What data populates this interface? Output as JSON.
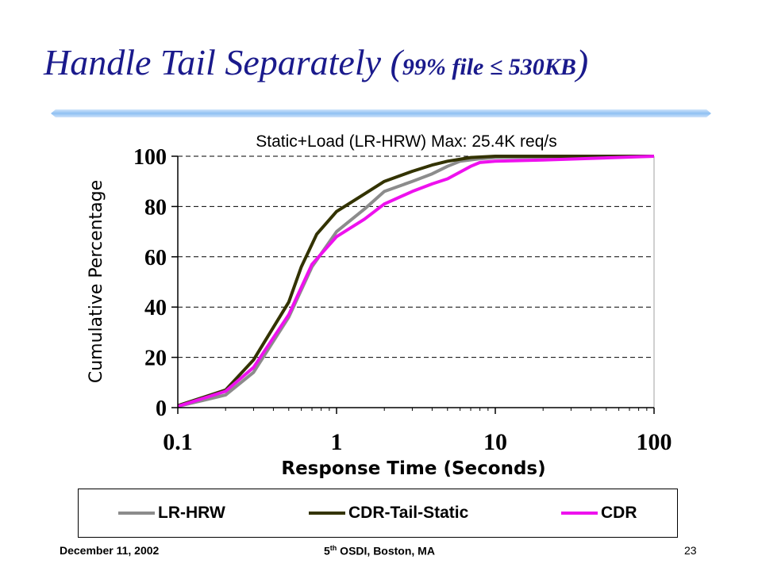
{
  "slide": {
    "title_main": "Handle Tail Separately (",
    "title_small": "99% file ≤ 530KB",
    "title_close": ")",
    "title_color": "#1a1a8c"
  },
  "footer": {
    "date": "December 11, 2002",
    "venue_prefix": "5",
    "venue_sup": "th",
    "venue_rest": " OSDI, Boston, MA",
    "page": "23"
  },
  "chart_data": {
    "type": "line",
    "title": "Static+Load (LR-HRW) Max: 25.4K req/s",
    "xlabel": "Response Time (Seconds)",
    "ylabel": "Cumulative Percentage",
    "xscale": "log",
    "xlim": [
      0.1,
      100
    ],
    "ylim": [
      0,
      100
    ],
    "xticks": [
      0.1,
      1,
      10,
      100
    ],
    "xtick_labels": [
      "0.1",
      "1",
      "10",
      "100"
    ],
    "yticks": [
      0,
      20,
      40,
      60,
      80,
      100
    ],
    "ytick_labels": [
      "0",
      "20",
      "40",
      "60",
      "80",
      "100"
    ],
    "grid": "horizontal dashed",
    "legend": "bottom",
    "series": [
      {
        "name": "LR-HRW",
        "color": "#8c8c8c",
        "points": [
          [
            0.1,
            0.5
          ],
          [
            0.2,
            5
          ],
          [
            0.3,
            14
          ],
          [
            0.5,
            36
          ],
          [
            0.7,
            56
          ],
          [
            1,
            70
          ],
          [
            1.5,
            79
          ],
          [
            2,
            86
          ],
          [
            3,
            90
          ],
          [
            4,
            93
          ],
          [
            5,
            96
          ],
          [
            6,
            98
          ],
          [
            8,
            99
          ],
          [
            10,
            99.5
          ],
          [
            100,
            100
          ]
        ]
      },
      {
        "name": "CDR-Tail-Static",
        "color": "#333300",
        "points": [
          [
            0.1,
            0.8
          ],
          [
            0.2,
            7
          ],
          [
            0.3,
            19
          ],
          [
            0.5,
            42
          ],
          [
            0.6,
            56
          ],
          [
            0.75,
            69
          ],
          [
            1,
            78
          ],
          [
            1.5,
            85
          ],
          [
            2,
            90
          ],
          [
            3,
            94
          ],
          [
            4,
            96.5
          ],
          [
            5,
            98
          ],
          [
            7,
            99.5
          ],
          [
            10,
            100
          ],
          [
            100,
            100
          ]
        ]
      },
      {
        "name": "CDR",
        "color": "#ee11ee",
        "points": [
          [
            0.1,
            0.5
          ],
          [
            0.2,
            6.5
          ],
          [
            0.3,
            16
          ],
          [
            0.5,
            37
          ],
          [
            0.7,
            57
          ],
          [
            1,
            68
          ],
          [
            1.5,
            75
          ],
          [
            2,
            81
          ],
          [
            3,
            86
          ],
          [
            4,
            89
          ],
          [
            5,
            91
          ],
          [
            7,
            96
          ],
          [
            8,
            97.5
          ],
          [
            10,
            98
          ],
          [
            20,
            98.5
          ],
          [
            100,
            100
          ]
        ]
      }
    ]
  }
}
